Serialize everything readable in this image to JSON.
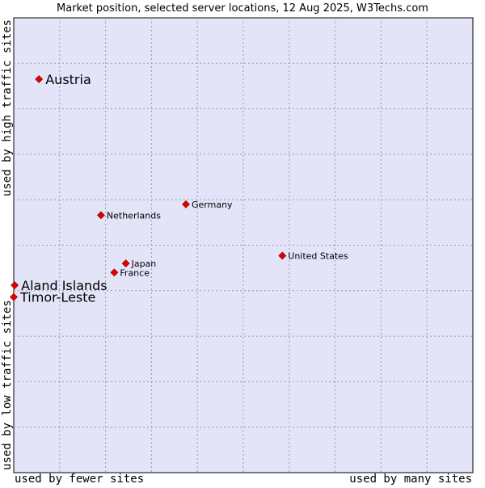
{
  "colors": {
    "plot_background": "#e3e4f8",
    "grid": "#9a9ab8",
    "marker": "#e00000",
    "text": "#000000"
  },
  "chart_data": {
    "type": "scatter",
    "title": "Market position, selected server locations, 12 Aug 2025, W3Techs.com",
    "xlabel_left": "used by fewer sites",
    "xlabel_right": "used by many sites",
    "ylabel_bottom": "used by low traffic sites",
    "ylabel_top": "used by high traffic sites",
    "xlim": [
      0,
      100
    ],
    "ylim": [
      0,
      100
    ],
    "grid": true,
    "grid_divisions": 10,
    "points": [
      {
        "label": "Austria",
        "x": 5.5,
        "y": 86.5,
        "emphasis": true
      },
      {
        "label": "Germany",
        "x": 37.5,
        "y": 59.0,
        "emphasis": false
      },
      {
        "label": "Netherlands",
        "x": 19.0,
        "y": 56.6,
        "emphasis": false
      },
      {
        "label": "United States",
        "x": 58.5,
        "y": 47.7,
        "emphasis": false
      },
      {
        "label": "Japan",
        "x": 24.4,
        "y": 46.0,
        "emphasis": false
      },
      {
        "label": "France",
        "x": 21.9,
        "y": 44.0,
        "emphasis": false
      },
      {
        "label": "Aland Islands",
        "x": 0.2,
        "y": 41.2,
        "emphasis": true
      },
      {
        "label": "Timor-Leste",
        "x": 0.0,
        "y": 38.6,
        "emphasis": true
      }
    ]
  }
}
